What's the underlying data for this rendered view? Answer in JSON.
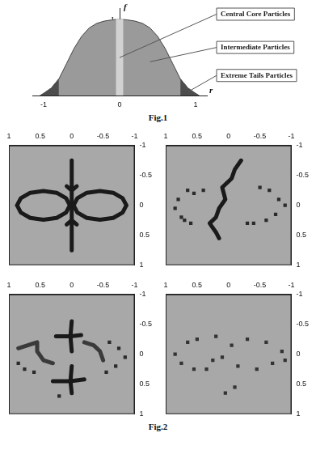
{
  "chart_data": [
    {
      "type": "line",
      "title": "Fig.1",
      "x_label": "r",
      "y_label": "f",
      "grid": false,
      "x": [
        -1.05,
        -1,
        -0.9,
        -0.8,
        -0.7,
        -0.6,
        -0.5,
        -0.4,
        -0.3,
        -0.2,
        -0.1,
        -0.05,
        0,
        0.05,
        0.1,
        0.2,
        0.3,
        0.4,
        0.5,
        0.6,
        0.7,
        0.8,
        0.9,
        1,
        1.05
      ],
      "xlim": [
        -1.15,
        1.15
      ],
      "xticks": [
        -1,
        0,
        1
      ],
      "ylim": [
        0,
        1.15
      ],
      "yticks": [
        1
      ],
      "series": [
        {
          "name": "Intermediate Particles",
          "color": "#9a9a9a",
          "values": [
            0,
            0.03,
            0.1,
            0.22,
            0.42,
            0.62,
            0.78,
            0.89,
            0.95,
            0.98,
            0.995,
            1,
            1,
            1,
            0.995,
            0.98,
            0.95,
            0.89,
            0.78,
            0.62,
            0.42,
            0.22,
            0.1,
            0.03,
            0
          ]
        },
        {
          "name": "Extreme Tails Particles",
          "color": "#4d4d4d",
          "values": [
            0,
            0.03,
            0.1,
            0.22,
            null,
            null,
            null,
            null,
            null,
            null,
            null,
            null,
            null,
            null,
            null,
            null,
            null,
            null,
            null,
            null,
            null,
            0.22,
            0.1,
            0.03,
            0
          ]
        },
        {
          "name": "Central Core Particles",
          "color": "#d2d2d2",
          "values": [
            null,
            null,
            null,
            null,
            null,
            null,
            null,
            null,
            null,
            null,
            null,
            1,
            1,
            1,
            null,
            null,
            null,
            null,
            null,
            null,
            null,
            null,
            null,
            null,
            null
          ]
        }
      ]
    },
    {
      "type": "scatter",
      "xlim": [
        1,
        -1
      ],
      "ylim": [
        1,
        -1
      ],
      "xticks": [
        -1,
        -0.5,
        0,
        0.5,
        1
      ],
      "yticks": [
        -1,
        -0.5,
        0,
        0.5,
        1
      ],
      "series": [
        {
          "type": "line",
          "color": "#1a1a1a",
          "x": [
            0.87,
            0.81,
            0.66,
            0.45,
            0.24,
            0.09,
            0.03,
            0.09,
            0.24,
            0.45,
            0.66,
            0.81,
            0.87
          ],
          "y": [
            0,
            0.12,
            0.21,
            0.24,
            0.21,
            0.12,
            0,
            -0.12,
            -0.21,
            -0.24,
            -0.21,
            -0.12,
            0
          ]
        },
        {
          "type": "line",
          "color": "#1a1a1a",
          "x": [
            -0.87,
            -0.81,
            -0.66,
            -0.45,
            -0.24,
            -0.09,
            -0.03,
            -0.09,
            -0.24,
            -0.45,
            -0.66,
            -0.81,
            -0.87
          ],
          "y": [
            0,
            0.12,
            0.21,
            0.24,
            0.21,
            0.12,
            0,
            -0.12,
            -0.21,
            -0.24,
            -0.21,
            -0.12,
            0
          ]
        },
        {
          "type": "line",
          "color": "#1a1a1a",
          "x": [
            0,
            0,
            0,
            0,
            0,
            0,
            0,
            0,
            0,
            0,
            0
          ],
          "y": [
            -0.75,
            -0.6,
            -0.45,
            -0.3,
            -0.15,
            0,
            0.15,
            0.3,
            0.45,
            0.6,
            0.75
          ]
        },
        {
          "type": "line",
          "color": "#1a1a1a",
          "x": [
            0.08,
            0,
            -0.08
          ],
          "y": [
            -0.32,
            -0.25,
            -0.32
          ]
        },
        {
          "type": "line",
          "color": "#1a1a1a",
          "x": [
            0.08,
            0,
            -0.08
          ],
          "y": [
            0.32,
            0.25,
            0.32
          ]
        }
      ]
    },
    {
      "type": "scatter",
      "xlim": [
        1,
        -1
      ],
      "ylim": [
        1,
        -1
      ],
      "xticks": [
        -1,
        -0.5,
        0,
        0.5,
        1
      ],
      "yticks": [
        -1,
        -0.5,
        0,
        0.5,
        1
      ],
      "series": [
        {
          "type": "line",
          "color": "#1a1a1a",
          "x": [
            -0.2,
            -0.1,
            -0.05,
            0.1,
            0.05,
            0.15,
            0.2,
            0.3,
            0.2,
            0.15
          ],
          "y": [
            -0.75,
            -0.6,
            -0.45,
            -0.3,
            -0.1,
            0.05,
            0.2,
            0.3,
            0.45,
            0.55
          ]
        },
        {
          "type": "scatter",
          "marker": "square",
          "color": "#2a2a2a",
          "x": [
            0.85,
            0.75,
            0.6,
            0.7,
            0.55,
            0.8,
            0.4,
            -0.5,
            -0.65,
            -0.8,
            -0.9,
            -0.75,
            -0.6,
            -0.4,
            -0.3,
            0.65
          ],
          "y": [
            0.05,
            0.2,
            0.3,
            0.25,
            -0.2,
            -0.1,
            -0.25,
            -0.3,
            -0.25,
            -0.1,
            0,
            0.15,
            0.25,
            0.3,
            0.3,
            -0.25
          ]
        }
      ]
    },
    {
      "type": "scatter",
      "xlim": [
        1,
        -1
      ],
      "ylim": [
        1,
        -1
      ],
      "xticks": [
        -1,
        -0.5,
        0,
        0.5,
        1
      ],
      "yticks": [
        -1,
        -0.5,
        0,
        0.5,
        1
      ],
      "series": [
        {
          "type": "line",
          "color": "#1a1a1a",
          "x": [
            0,
            0.02,
            0
          ],
          "y": [
            -0.55,
            -0.3,
            -0.05
          ]
        },
        {
          "type": "line",
          "color": "#1a1a1a",
          "x": [
            0.25,
            0.02,
            -0.15
          ],
          "y": [
            -0.3,
            -0.3,
            -0.32
          ]
        },
        {
          "type": "line",
          "color": "#1a1a1a",
          "x": [
            0,
            0.02,
            0
          ],
          "y": [
            0.2,
            0.45,
            0.65
          ]
        },
        {
          "type": "line",
          "color": "#1a1a1a",
          "x": [
            0.3,
            0.02,
            -0.2
          ],
          "y": [
            0.45,
            0.45,
            0.42
          ]
        },
        {
          "type": "line",
          "color": "#3a3a3a",
          "x": [
            0.85,
            0.7,
            0.55,
            0.55,
            0.45,
            0.3
          ],
          "y": [
            -0.1,
            -0.15,
            -0.2,
            -0.05,
            0.1,
            0.15
          ]
        },
        {
          "type": "line",
          "color": "#3a3a3a",
          "x": [
            -0.2,
            -0.35,
            -0.45,
            -0.5
          ],
          "y": [
            -0.2,
            -0.15,
            -0.05,
            0.1
          ]
        },
        {
          "type": "scatter",
          "marker": "square",
          "color": "#2a2a2a",
          "x": [
            0.85,
            0.75,
            0.6,
            -0.6,
            -0.75,
            -0.85,
            -0.7,
            -0.55,
            0.2
          ],
          "y": [
            0.15,
            0.25,
            0.3,
            -0.2,
            -0.1,
            0.05,
            0.2,
            0.3,
            0.7
          ]
        }
      ]
    },
    {
      "type": "scatter",
      "xlim": [
        1,
        -1
      ],
      "ylim": [
        1,
        -1
      ],
      "xticks": [
        -1,
        -0.5,
        0,
        0.5,
        1
      ],
      "yticks": [
        -1,
        -0.5,
        0,
        0.5,
        1
      ],
      "series": [
        {
          "type": "scatter",
          "marker": "square",
          "color": "#333333",
          "x": [
            0.85,
            0.75,
            0.65,
            0.5,
            0.55,
            0.35,
            0.2,
            0.1,
            0.25,
            -0.05,
            -0.15,
            -0.3,
            -0.45,
            -0.6,
            -0.7,
            -0.85,
            -0.9,
            0.05,
            -0.1
          ],
          "y": [
            0,
            0.15,
            -0.2,
            -0.25,
            0.25,
            0.25,
            -0.3,
            0.05,
            0.1,
            -0.15,
            0.2,
            -0.25,
            0.25,
            -0.2,
            0.15,
            -0.05,
            0.1,
            0.65,
            0.55
          ]
        }
      ]
    }
  ],
  "caption": "Fig.2"
}
